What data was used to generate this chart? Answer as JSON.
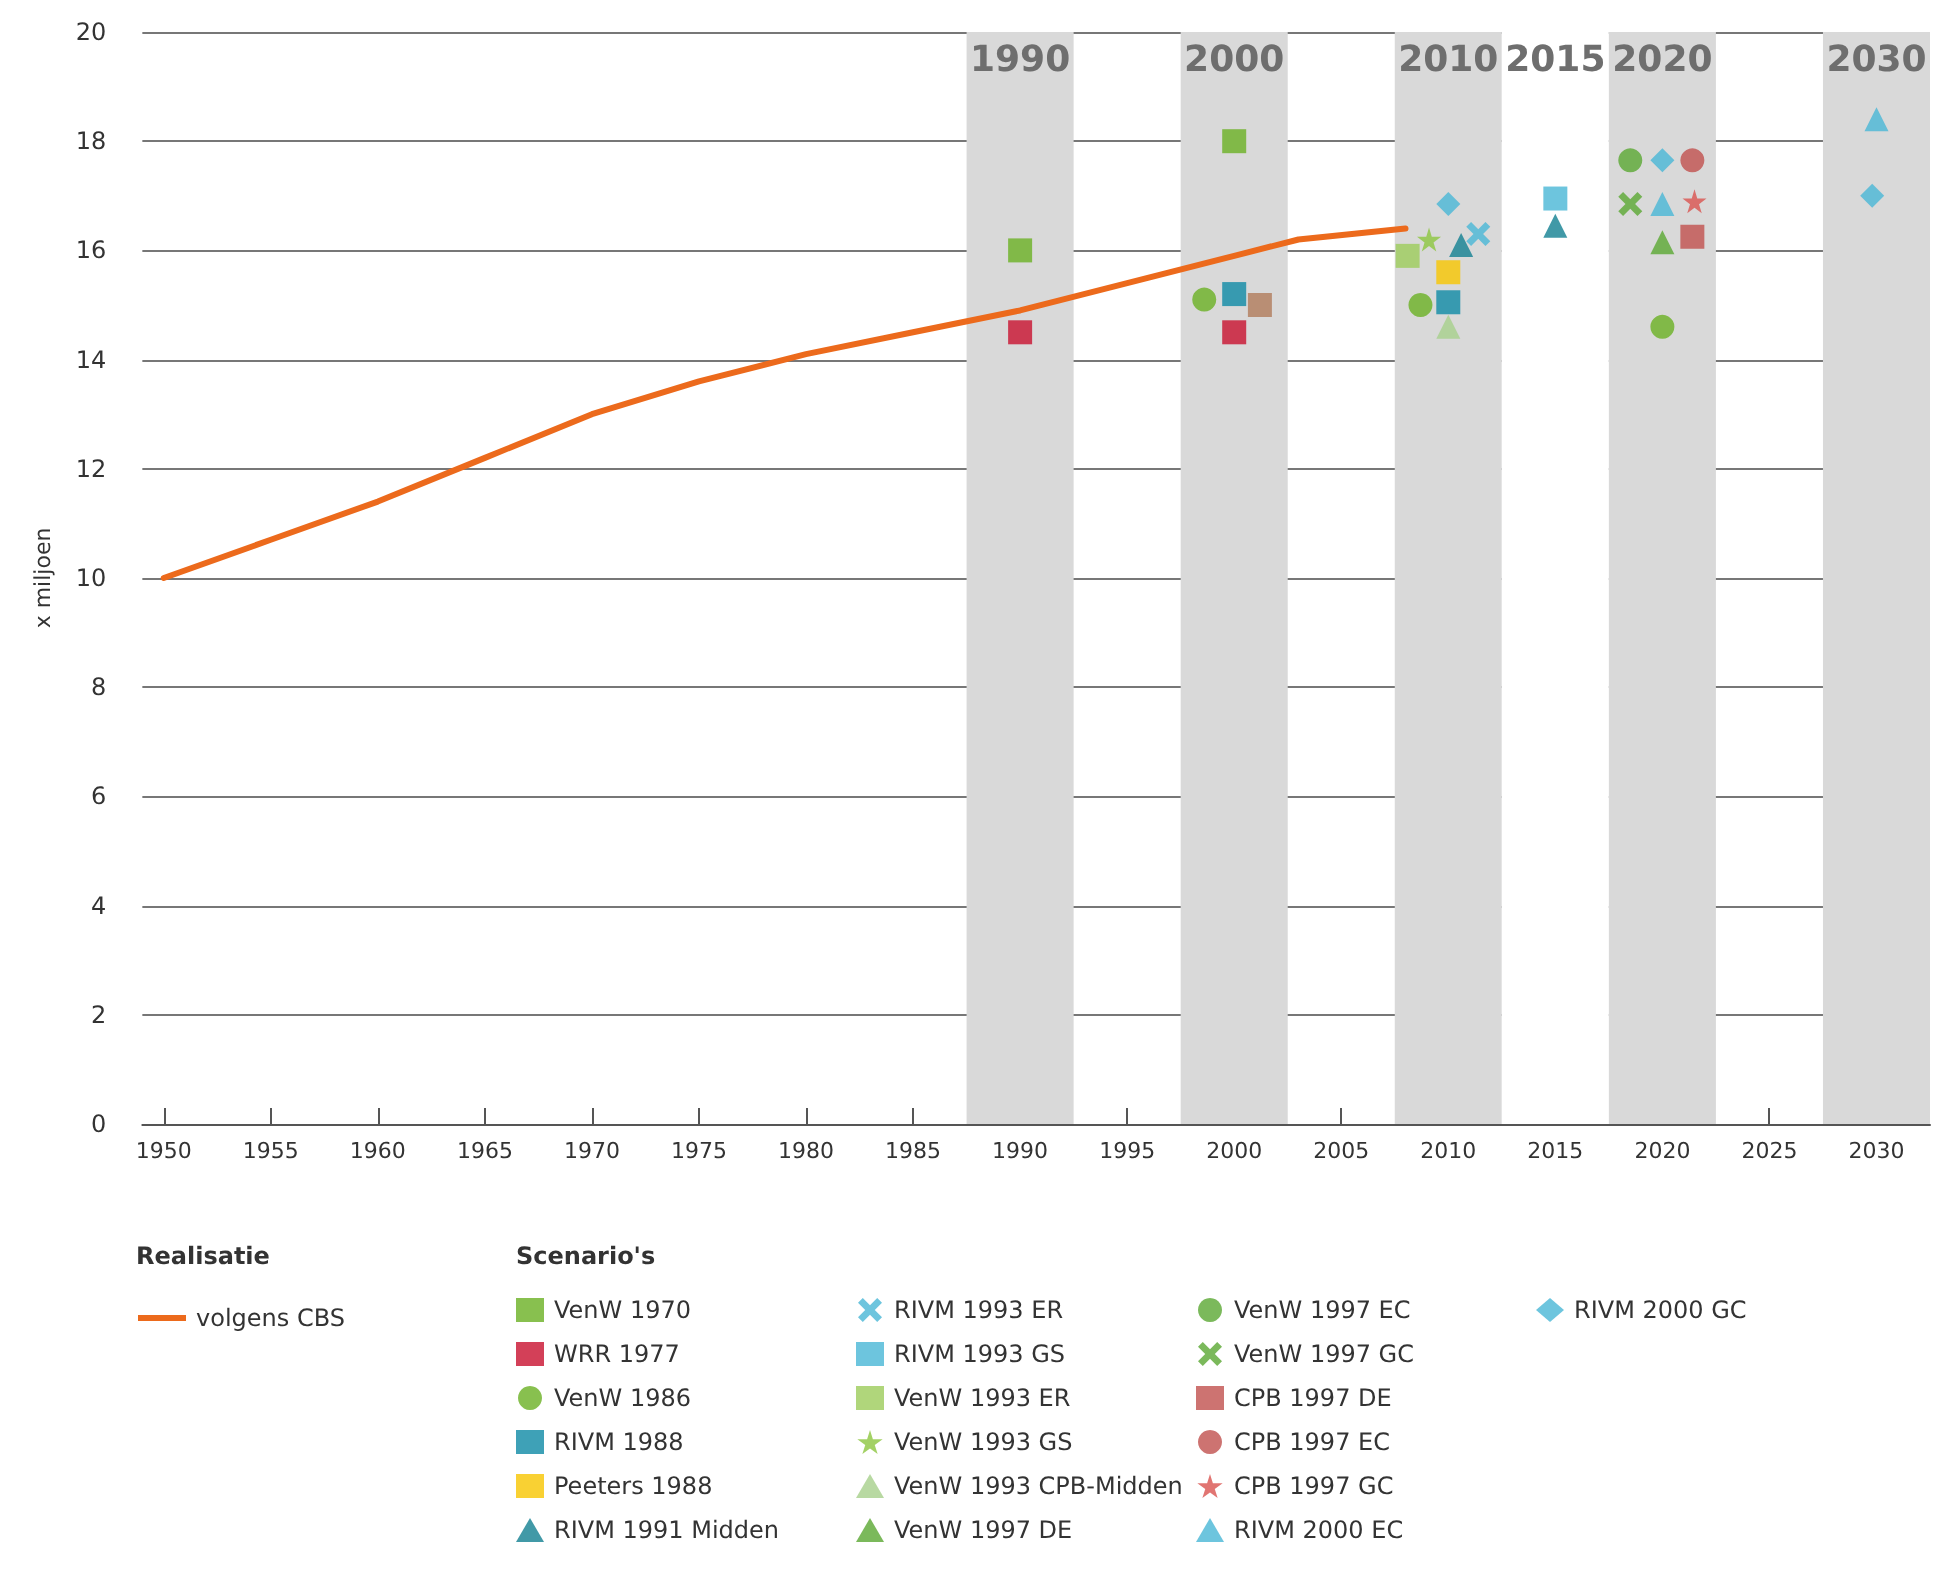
{
  "chart_data": {
    "type": "scatter",
    "ylabel": "x miljoen",
    "legend_title": "Scenario's",
    "legend": "bottom",
    "grid": "y",
    "xlim": [
      1949,
      2032.5
    ],
    "xticks": [
      1950,
      1955,
      1960,
      1965,
      1970,
      1975,
      1980,
      1985,
      1990,
      1995,
      2000,
      2005,
      2010,
      2015,
      2020,
      2025,
      2030
    ],
    "ylim": [
      0,
      20
    ],
    "yticks": [
      0,
      2,
      4,
      6,
      8,
      10,
      12,
      14,
      16,
      18,
      20
    ],
    "bands": [
      {
        "axis": "x",
        "from": 1987.5,
        "to": 1992.5,
        "label": "1990",
        "color": "#d9d9d9"
      },
      {
        "axis": "x",
        "from": 1997.5,
        "to": 2002.5,
        "label": "2000",
        "color": "#d9d9d9"
      },
      {
        "axis": "x",
        "from": 2007.5,
        "to": 2012.5,
        "label": "2010",
        "color": "#d9d9d9"
      },
      {
        "axis": "x",
        "from": 2012.5,
        "to": 2017.5,
        "label": "2015",
        "color": "#ffffff"
      },
      {
        "axis": "x",
        "from": 2017.5,
        "to": 2022.5,
        "label": "2020",
        "color": "#d9d9d9"
      },
      {
        "axis": "x",
        "from": 2027.5,
        "to": 2032.5,
        "label": "2030",
        "color": "#d9d9d9"
      }
    ],
    "annotations": [
      "Realisatie"
    ],
    "series": [
      {
        "name": "volgens CBS",
        "type": "line",
        "marker": "none",
        "line_style": "solid",
        "color": "#ec6a1c",
        "x": [
          1950,
          1955,
          1960,
          1965,
          1970,
          1975,
          1980,
          1985,
          1990,
          1995,
          2000,
          2003,
          2008
        ],
        "values": [
          10.0,
          10.7,
          11.4,
          12.2,
          13.0,
          13.6,
          14.1,
          14.5,
          14.9,
          15.4,
          15.9,
          16.2,
          16.4
        ]
      },
      {
        "name": "VenW 1970",
        "marker": "square",
        "color": "#6ab023",
        "x": [
          1990,
          2000
        ],
        "values": [
          16.0,
          18.0
        ]
      },
      {
        "name": "WRR 1977",
        "marker": "square",
        "color": "#c8102e",
        "x": [
          1990,
          2000
        ],
        "values": [
          14.5,
          14.5
        ]
      },
      {
        "marker": "square",
        "color": "#b07a5a",
        "x": [
          2001.2
        ],
        "values": [
          15.0
        ]
      },
      {
        "name": "VenW 1986",
        "marker": "circle",
        "color": "#6ab023",
        "x": [
          1998.6,
          2008.7,
          2020
        ],
        "values": [
          15.1,
          15.0,
          14.6
        ]
      },
      {
        "name": "RIVM 1988",
        "marker": "square",
        "color": "#0e8aa5",
        "x": [
          2000,
          2010
        ],
        "values": [
          15.2,
          15.05
        ]
      },
      {
        "name": "Peeters 1988",
        "marker": "square",
        "color": "#f7c600",
        "x": [
          2010
        ],
        "values": [
          15.6
        ]
      },
      {
        "name": "RIVM 1991 Midden",
        "marker": "triangle",
        "color": "#127f91",
        "x": [
          2010.6,
          2015
        ],
        "values": [
          16.1,
          16.45
        ]
      },
      {
        "name": "RIVM 1993 ER",
        "marker": "cross",
        "color": "#49b6d6",
        "x": [
          2011.4
        ],
        "values": [
          16.3
        ]
      },
      {
        "name": "RIVM 1993 GS",
        "marker": "square",
        "color": "#49b6d6",
        "x": [
          2015
        ],
        "values": [
          16.95
        ]
      },
      {
        "name": "VenW 1993 ER",
        "marker": "square",
        "color": "#9ccc5a",
        "x": [
          2008.1
        ],
        "values": [
          15.9
        ]
      },
      {
        "name": "VenW 1993 GS",
        "marker": "star",
        "color": "#8cc63f",
        "x": [
          2009.1
        ],
        "values": [
          16.2
        ]
      },
      {
        "name": "VenW 1993 CPB-Midden",
        "marker": "triangle",
        "color": "#a6d08b",
        "x": [
          2010
        ],
        "values": [
          14.6
        ]
      },
      {
        "name": "VenW 1997 DE",
        "marker": "triangle",
        "color": "#5aa832",
        "x": [
          2020
        ],
        "values": [
          16.15
        ]
      },
      {
        "name": "VenW 1997 EC",
        "marker": "circle",
        "color": "#5aa832",
        "x": [
          2018.5
        ],
        "values": [
          17.65
        ]
      },
      {
        "name": "VenW 1997 GC",
        "marker": "cross",
        "color": "#5aa832",
        "x": [
          2018.5
        ],
        "values": [
          16.85
        ]
      },
      {
        "name": "CPB 1997 DE",
        "marker": "square",
        "color": "#c0504d",
        "x": [
          2021.4
        ],
        "values": [
          16.25
        ]
      },
      {
        "name": "CPB 1997 EC",
        "marker": "circle",
        "color": "#c0504d",
        "x": [
          2021.4
        ],
        "values": [
          17.65
        ]
      },
      {
        "name": "CPB 1997 GC",
        "marker": "star",
        "color": "#d9534f",
        "x": [
          2021.5
        ],
        "values": [
          16.9
        ]
      },
      {
        "name": "RIVM 2000 EC",
        "marker": "triangle",
        "color": "#49b6d6",
        "x": [
          2020,
          2030
        ],
        "values": [
          16.85,
          18.4
        ]
      },
      {
        "name": "RIVM 2000 GC",
        "marker": "diamond",
        "color": "#49b6d6",
        "x": [
          2010,
          2020,
          2029.8
        ],
        "values": [
          16.85,
          17.65,
          17.0
        ]
      }
    ]
  }
}
